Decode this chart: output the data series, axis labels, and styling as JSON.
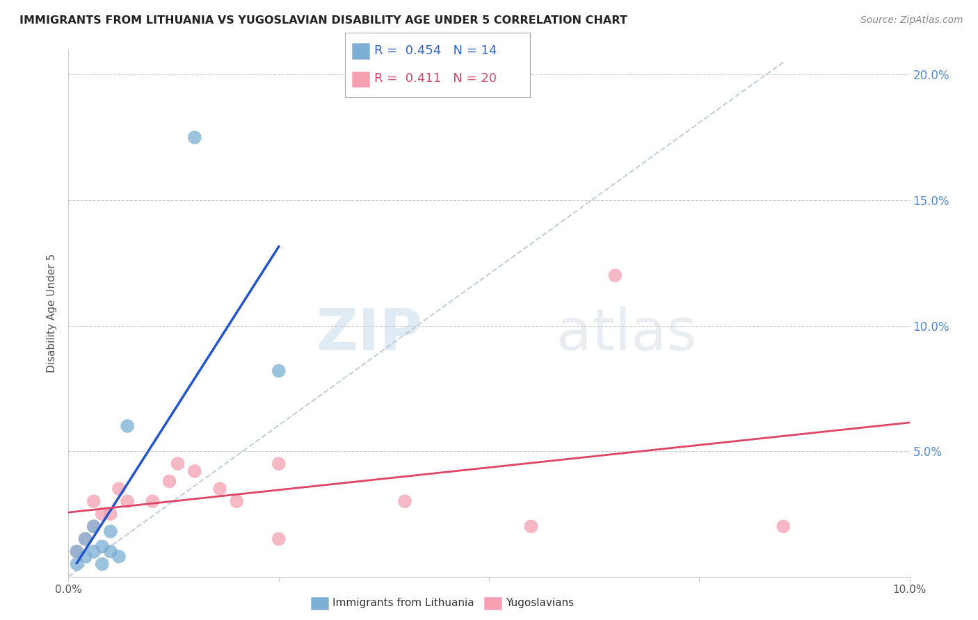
{
  "title": "IMMIGRANTS FROM LITHUANIA VS YUGOSLAVIAN DISABILITY AGE UNDER 5 CORRELATION CHART",
  "source": "Source: ZipAtlas.com",
  "ylabel": "Disability Age Under 5",
  "legend_label1": "Immigrants from Lithuania",
  "legend_label2": "Yugoslavians",
  "R1": 0.454,
  "N1": 14,
  "R2": 0.411,
  "N2": 20,
  "watermark_zip": "ZIP",
  "watermark_atlas": "atlas",
  "lithuania_x": [
    0.001,
    0.001,
    0.002,
    0.002,
    0.003,
    0.003,
    0.004,
    0.004,
    0.005,
    0.005,
    0.006,
    0.007,
    0.015,
    0.025
  ],
  "lithuania_y": [
    0.005,
    0.01,
    0.008,
    0.015,
    0.01,
    0.02,
    0.005,
    0.012,
    0.01,
    0.018,
    0.008,
    0.06,
    0.175,
    0.082
  ],
  "yugoslavian_x": [
    0.001,
    0.002,
    0.003,
    0.003,
    0.004,
    0.005,
    0.006,
    0.007,
    0.01,
    0.012,
    0.013,
    0.015,
    0.018,
    0.02,
    0.025,
    0.025,
    0.04,
    0.055,
    0.065,
    0.085
  ],
  "yugoslavian_y": [
    0.01,
    0.015,
    0.02,
    0.03,
    0.025,
    0.025,
    0.035,
    0.03,
    0.03,
    0.038,
    0.045,
    0.042,
    0.035,
    0.03,
    0.045,
    0.015,
    0.03,
    0.02,
    0.12,
    0.02
  ],
  "color_lithuania": "#7bafd4",
  "color_yugoslavian": "#f4a0b0",
  "color_regression_lithuania": "#2255cc",
  "color_regression_yugoslavian": "#dd4466",
  "color_diagonal": "#b0c4d8",
  "xlim": [
    0.0,
    0.1
  ],
  "ylim": [
    0.0,
    0.21
  ],
  "yticks": [
    0.05,
    0.1,
    0.15,
    0.2
  ],
  "ytick_labels": [
    "5.0%",
    "10.0%",
    "15.0%",
    "20.0%"
  ],
  "xticks": [
    0.0,
    0.025,
    0.05,
    0.075,
    0.1
  ],
  "xtick_labels": [
    "0.0%",
    "",
    "",
    "",
    "10.0%"
  ],
  "background_color": "#ffffff",
  "grid_color": "#cccccc"
}
